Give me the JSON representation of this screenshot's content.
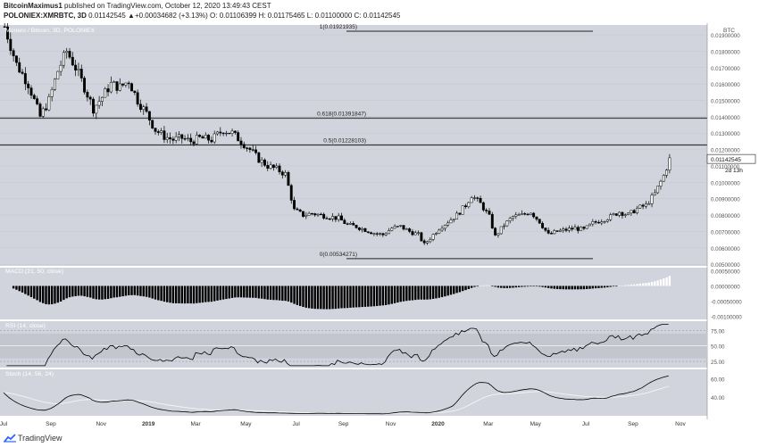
{
  "header": {
    "author": "BitcoinMaximus1",
    "published_text": "published on TradingView.com, October 12, 2020 13:49:43 CEST",
    "symbol": "POLONIEX:XMRBTC, 3D",
    "quote": "0.01142545  ▲+0.00034682 (+3.13%)  O: 0.01106399  H: 0.01175465  L: 0.01100000  C: 0.01142545"
  },
  "footer": {
    "brand": "TradingView"
  },
  "chart_data": [
    {
      "type": "candlestick",
      "title": "Monero / Bitcoin, 3D, POLONIEX",
      "unit_label": "BTC",
      "y_ticks": [
        0.019,
        0.018,
        0.017,
        0.016,
        0.015,
        0.014,
        0.013,
        0.012,
        0.011,
        0.01,
        0.009,
        0.008,
        0.007,
        0.006,
        0.005
      ],
      "y_tick_labels": [
        "0.01900000",
        "0.01800000",
        "0.01700000",
        "0.01600000",
        "0.01500000",
        "0.01400000",
        "0.01300000",
        "0.01200000",
        "0.01100000",
        "0.01000000",
        "0.00900000",
        "0.00800000",
        "0.00700000",
        "0.00600000",
        "0.00500000"
      ],
      "ylim": [
        0.0049,
        0.0196
      ],
      "last_price_label": "0.01142545",
      "countdown_label": "2d 13h",
      "fib_levels": [
        {
          "label": "1(0.01921935)",
          "value": 0.01921935
        },
        {
          "label": "0.618(0.01391847)",
          "value": 0.01391847
        },
        {
          "label": "0.5(0.01228103)",
          "value": 0.01228103
        },
        {
          "label": "0(0.00534271)",
          "value": 0.00534271
        }
      ],
      "price_path": [
        [
          0,
          0.0195
        ],
        [
          4,
          0.0172
        ],
        [
          8,
          0.016
        ],
        [
          12,
          0.014
        ],
        [
          15,
          0.015
        ],
        [
          18,
          0.0168
        ],
        [
          21,
          0.018
        ],
        [
          24,
          0.017
        ],
        [
          27,
          0.0158
        ],
        [
          30,
          0.0145
        ],
        [
          33,
          0.0152
        ],
        [
          36,
          0.016
        ],
        [
          39,
          0.0158
        ],
        [
          42,
          0.0162
        ],
        [
          45,
          0.015
        ],
        [
          48,
          0.0142
        ],
        [
          51,
          0.0132
        ],
        [
          54,
          0.0128
        ],
        [
          57,
          0.0126
        ],
        [
          60,
          0.0127
        ],
        [
          63,
          0.0125
        ],
        [
          66,
          0.0127
        ],
        [
          70,
          0.0126
        ],
        [
          74,
          0.0132
        ],
        [
          77,
          0.013
        ],
        [
          80,
          0.0125
        ],
        [
          83,
          0.012
        ],
        [
          86,
          0.0114
        ],
        [
          89,
          0.011
        ],
        [
          92,
          0.0108
        ],
        [
          95,
          0.0105
        ],
        [
          98,
          0.0083
        ],
        [
          101,
          0.008
        ],
        [
          104,
          0.0081
        ],
        [
          107,
          0.008
        ],
        [
          110,
          0.0079
        ],
        [
          113,
          0.0078
        ],
        [
          116,
          0.0074
        ],
        [
          119,
          0.0073
        ],
        [
          122,
          0.0071
        ],
        [
          125,
          0.0069
        ],
        [
          128,
          0.0068
        ],
        [
          131,
          0.0072
        ],
        [
          134,
          0.0073
        ],
        [
          137,
          0.007
        ],
        [
          140,
          0.0068
        ],
        [
          142,
          0.0062
        ],
        [
          144,
          0.0066
        ],
        [
          147,
          0.0072
        ],
        [
          150,
          0.0076
        ],
        [
          153,
          0.008
        ],
        [
          156,
          0.0086
        ],
        [
          158,
          0.0092
        ],
        [
          161,
          0.0087
        ],
        [
          164,
          0.0079
        ],
        [
          166,
          0.0067
        ],
        [
          169,
          0.0074
        ],
        [
          172,
          0.0079
        ],
        [
          175,
          0.008
        ],
        [
          178,
          0.0082
        ],
        [
          181,
          0.0076
        ],
        [
          184,
          0.0068
        ],
        [
          187,
          0.007
        ],
        [
          190,
          0.0071
        ],
        [
          193,
          0.0072
        ],
        [
          196,
          0.0071
        ],
        [
          199,
          0.0075
        ],
        [
          202,
          0.0077
        ],
        [
          205,
          0.0079
        ],
        [
          208,
          0.0082
        ],
        [
          211,
          0.008
        ],
        [
          214,
          0.0084
        ],
        [
          217,
          0.0086
        ],
        [
          220,
          0.0093
        ],
        [
          223,
          0.0104
        ],
        [
          225,
          0.0114
        ]
      ],
      "x_ticks": [
        {
          "label": "Jul",
          "pos": 0
        },
        {
          "label": "Sep",
          "pos": 16
        },
        {
          "label": "Nov",
          "pos": 33
        },
        {
          "label": "2019",
          "pos": 49
        },
        {
          "label": "Mar",
          "pos": 65
        },
        {
          "label": "May",
          "pos": 82
        },
        {
          "label": "Jul",
          "pos": 99
        },
        {
          "label": "Sep",
          "pos": 115
        },
        {
          "label": "Nov",
          "pos": 131
        },
        {
          "label": "2020",
          "pos": 147
        },
        {
          "label": "Mar",
          "pos": 164
        },
        {
          "label": "May",
          "pos": 180
        },
        {
          "label": "Jul",
          "pos": 197
        },
        {
          "label": "Sep",
          "pos": 213
        },
        {
          "label": "Nov",
          "pos": 229
        }
      ]
    },
    {
      "type": "histogram",
      "title": "MACD (21, 50, close)",
      "y_ticks": [
        0.0005,
        0,
        -0.0005,
        -0.001
      ],
      "y_tick_labels": [
        "0.00050000",
        "0.00000000",
        "-0.00050000",
        "-0.00100000"
      ],
      "ylim": [
        -0.0011,
        0.0006
      ]
    },
    {
      "type": "line",
      "title": "RSI (14, close)",
      "y_ticks": [
        75,
        50,
        25
      ],
      "y_tick_labels": [
        "75.00",
        "50.00",
        "25.00"
      ],
      "ylim": [
        15,
        90
      ],
      "band": [
        30,
        70
      ]
    },
    {
      "type": "line",
      "title": "Stoch (14, 56, 24)",
      "y_ticks": [
        60,
        40
      ],
      "y_tick_labels": [
        "60.00",
        "40.00"
      ],
      "ylim": [
        20,
        70
      ]
    }
  ],
  "colors": {
    "plot_bg": "#d1d4dc",
    "candle": "#000000",
    "macd_pos": "#ffffff",
    "macd_neg": "#000000",
    "stoch_signal": "#f5f5f5"
  }
}
